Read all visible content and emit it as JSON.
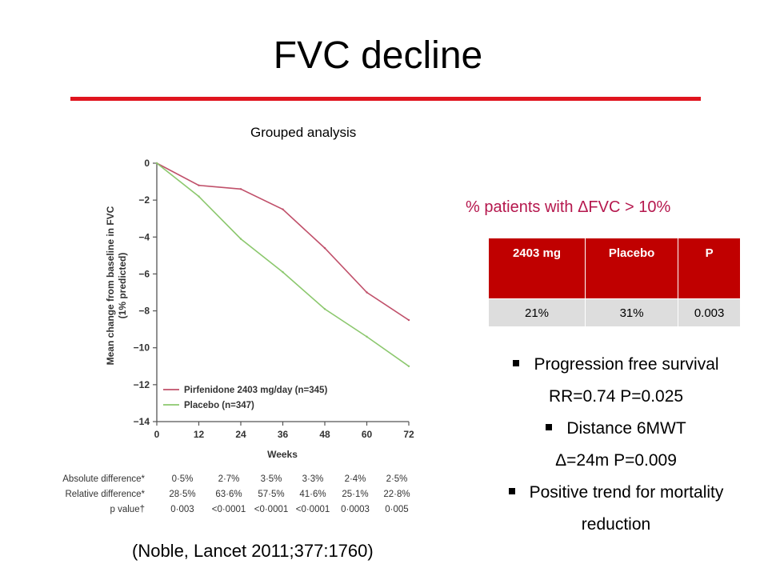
{
  "slide": {
    "title": "FVC decline",
    "chart_caption": "Grouped analysis",
    "citation": "(Noble, Lancet 2011;377:1760)",
    "accent_color": "#e0141e"
  },
  "table": {
    "heading": "% patients with ΔFVC > 10%",
    "headers": [
      "2403 mg",
      "Placebo",
      "P"
    ],
    "values": [
      "21%",
      "31%",
      "0.003"
    ],
    "header_color": "#c00000",
    "cell_color": "#dddddd"
  },
  "bullets": [
    {
      "text": "Progression free survival",
      "detail": "RR=0.74 P=0.025"
    },
    {
      "text": "Distance 6MWT",
      "detail": "Δ=24m P=0.009"
    },
    {
      "text": "Positive trend for mortality",
      "detail": "reduction"
    }
  ],
  "chart_data": {
    "type": "line",
    "xlabel": "Weeks",
    "ylabel": "Mean change from baseline in FVC",
    "ylabel_sub": "(1% predicted)",
    "x": [
      0,
      12,
      24,
      36,
      48,
      60,
      72
    ],
    "x_ticks": [
      "0",
      "12",
      "24",
      "36",
      "48",
      "60",
      "72"
    ],
    "y_ticks": [
      "0",
      "−2",
      "−4",
      "−6",
      "−8",
      "−10",
      "−12",
      "−14"
    ],
    "y_tick_values": [
      0,
      -2,
      -4,
      -6,
      -8,
      -10,
      -12,
      -14
    ],
    "xlim": [
      0,
      72
    ],
    "ylim": [
      -14,
      0
    ],
    "grid": false,
    "legend_position": "bottom-left",
    "series": [
      {
        "name": "Pirfenidone 2403 mg/day (n=345)",
        "color": "#c0506a",
        "values": [
          0,
          -1.2,
          -1.4,
          -2.5,
          -4.6,
          -7.0,
          -8.5
        ]
      },
      {
        "name": "Placebo (n=347)",
        "color": "#8cc86e",
        "values": [
          0,
          -1.8,
          -4.1,
          -5.9,
          -7.9,
          -9.4,
          -11.0
        ]
      }
    ],
    "table_rows": [
      {
        "label": "Absolute difference*",
        "values": [
          "0·5%",
          "2·7%",
          "3·5%",
          "3·3%",
          "2·4%",
          "2·5%"
        ]
      },
      {
        "label": "Relative difference*",
        "values": [
          "28·5%",
          "63·6%",
          "57·5%",
          "41·6%",
          "25·1%",
          "22·8%"
        ]
      },
      {
        "label": "p value†",
        "values": [
          "0·003",
          "<0·0001",
          "<0·0001",
          "<0·0001",
          "0·0003",
          "0·005"
        ]
      }
    ]
  }
}
